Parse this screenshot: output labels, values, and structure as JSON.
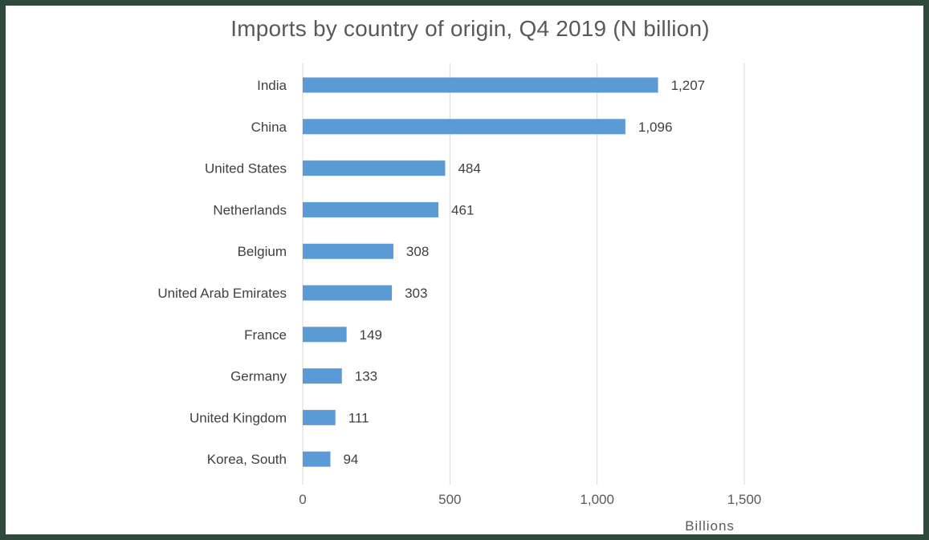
{
  "chart_data": {
    "type": "bar",
    "orientation": "horizontal",
    "title": "Imports by country of origin, Q4 2019 (N billion)",
    "xlabel": "Billions",
    "ylabel": "",
    "categories": [
      "India",
      "China",
      "United States",
      "Netherlands",
      "Belgium",
      "United Arab Emirates",
      "France",
      "Germany",
      "United Kingdom",
      "Korea, South"
    ],
    "values": [
      1207,
      1096,
      484,
      461,
      308,
      303,
      149,
      133,
      111,
      94
    ],
    "data_labels": [
      "1,207",
      "1,096",
      "484",
      "461",
      "308",
      "303",
      "149",
      "133",
      "111",
      "94"
    ],
    "xlim": [
      0,
      1500
    ],
    "x_ticks": [
      0,
      500,
      1000,
      1500
    ],
    "x_tick_labels": [
      "0",
      "500",
      "1,000",
      "1,500"
    ],
    "grid": "vertical",
    "legend": "none",
    "bar_color": "#5b9bd5",
    "gridline_color": "#d9d9d9",
    "frame_color": "#2f4a3b"
  }
}
